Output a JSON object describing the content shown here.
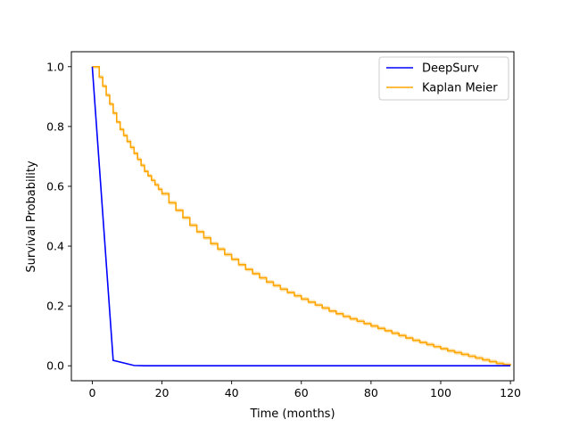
{
  "chart_data": {
    "type": "line",
    "title": "",
    "xlabel": "Time (months)",
    "ylabel": "Survival Probability",
    "xlim": [
      -6,
      121
    ],
    "ylim": [
      -0.05,
      1.05
    ],
    "xticks": [
      0,
      20,
      40,
      60,
      80,
      100,
      120
    ],
    "yticks": [
      0.0,
      0.2,
      0.4,
      0.6,
      0.8,
      1.0
    ],
    "xtick_labels": [
      "0",
      "20",
      "40",
      "60",
      "80",
      "100",
      "120"
    ],
    "ytick_labels": [
      "0.0",
      "0.2",
      "0.4",
      "0.6",
      "0.8",
      "1.0"
    ],
    "grid": false,
    "legend_position": "top-right",
    "series": [
      {
        "name": "DeepSurv",
        "color": "#0000ff",
        "style": "line",
        "x": [
          0,
          6,
          12,
          15,
          120
        ],
        "y": [
          1.0,
          0.018,
          0.001,
          0.0,
          0.0
        ]
      },
      {
        "name": "Kaplan Meier",
        "color": "#ffa500",
        "style": "step",
        "ci_band": true,
        "x": [
          0,
          1,
          2,
          3,
          4,
          5,
          6,
          7,
          8,
          9,
          10,
          11,
          12,
          13,
          14,
          15,
          16,
          17,
          18,
          19,
          20,
          22,
          24,
          26,
          28,
          30,
          32,
          34,
          36,
          38,
          40,
          42,
          44,
          46,
          48,
          50,
          52,
          54,
          56,
          58,
          60,
          62,
          64,
          66,
          68,
          70,
          72,
          74,
          76,
          78,
          80,
          82,
          84,
          86,
          88,
          90,
          92,
          94,
          96,
          98,
          100,
          102,
          104,
          106,
          108,
          110,
          112,
          114,
          116,
          118,
          120
        ],
        "y": [
          1.0,
          1.0,
          0.965,
          0.935,
          0.905,
          0.875,
          0.845,
          0.815,
          0.79,
          0.77,
          0.75,
          0.73,
          0.71,
          0.69,
          0.67,
          0.65,
          0.635,
          0.62,
          0.605,
          0.59,
          0.575,
          0.545,
          0.52,
          0.495,
          0.47,
          0.448,
          0.428,
          0.408,
          0.39,
          0.372,
          0.356,
          0.338,
          0.322,
          0.308,
          0.294,
          0.28,
          0.268,
          0.256,
          0.245,
          0.234,
          0.223,
          0.213,
          0.203,
          0.193,
          0.183,
          0.174,
          0.165,
          0.157,
          0.149,
          0.141,
          0.133,
          0.125,
          0.117,
          0.109,
          0.101,
          0.093,
          0.085,
          0.078,
          0.071,
          0.064,
          0.057,
          0.05,
          0.044,
          0.038,
          0.032,
          0.026,
          0.02,
          0.014,
          0.008,
          0.004,
          0.001
        ]
      }
    ]
  }
}
